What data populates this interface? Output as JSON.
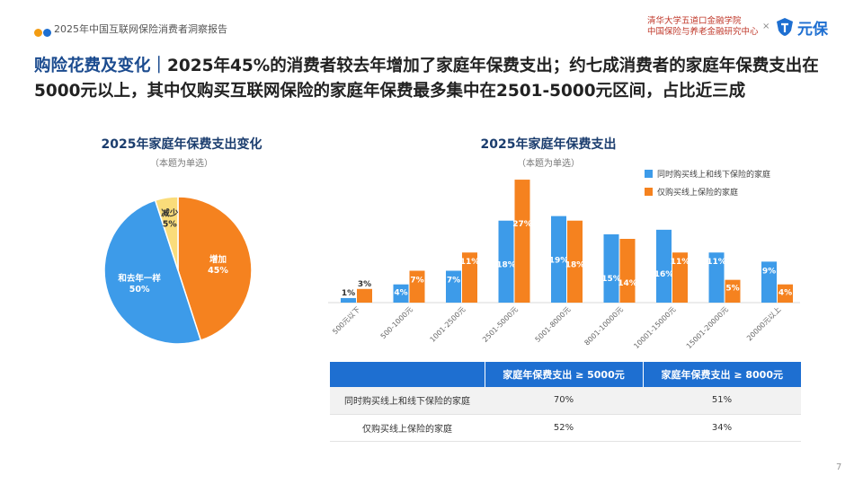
{
  "header": {
    "report_title": "2025年中国互联网保险消费者洞察报告",
    "institution_line1": "清华大学五道口金融学院",
    "institution_line2": "中国保险与养老金融研究中心",
    "separator": "×",
    "brand_name": "元保",
    "dot_colors": [
      "#f39c12",
      "#1e6fd1"
    ]
  },
  "headline": {
    "keyword": "购险花费及变化｜",
    "text": "2025年45%的消费者较去年增加了家庭年保费支出；约七成消费者的家庭年保费支出在5000元以上，其中仅购买互联网保险的家庭年保费最多集中在2501-5000元区间，占比近三成"
  },
  "pie_chart": {
    "title": "2025年家庭年保费支出变化",
    "subtitle": "（本题为单选）"
  },
  "bar_chart": {
    "title": "2025年家庭年保费支出",
    "subtitle": "（本题为单选）"
  },
  "chart_data": [
    {
      "type": "pie",
      "title": "2025年家庭年保费支出变化",
      "subtitle": "（本题为单选）",
      "slices": [
        {
          "label": "增加",
          "value": 45,
          "display": "45%",
          "color": "#f5821f"
        },
        {
          "label": "和去年一样",
          "value": 50,
          "display": "50%",
          "color": "#3d9be9"
        },
        {
          "label": "减少",
          "value": 5,
          "display": "5%",
          "color": "#fadc7a"
        }
      ]
    },
    {
      "type": "bar",
      "title": "2025年家庭年保费支出",
      "subtitle": "（本题为单选）",
      "categories": [
        "500元以下",
        "500-1000元",
        "1001-2500元",
        "2501-5000元",
        "5001-8000元",
        "8001-10000元",
        "10001-15000元",
        "15001-20000元",
        "20000元以上"
      ],
      "series": [
        {
          "name": "同时购买线上和线下保险的家庭",
          "color": "#3d9be9",
          "values": [
            1,
            4,
            7,
            18,
            19,
            15,
            16,
            11,
            9
          ],
          "labels": [
            "1%",
            "4%",
            "7%",
            "18%",
            "19%",
            "15%",
            "16%",
            "11%",
            "9%"
          ]
        },
        {
          "name": "仅购买线上保险的家庭",
          "color": "#f5821f",
          "values": [
            3,
            7,
            11,
            27,
            18,
            14,
            11,
            5,
            4
          ],
          "labels": [
            "3%",
            "7%",
            "11%",
            "27%",
            "18%",
            "14%",
            "11%",
            "5%",
            "4%"
          ]
        }
      ],
      "ylim": [
        0,
        28
      ],
      "legend": "top-right",
      "grid": false
    }
  ],
  "summary_table": {
    "headers": [
      "",
      "家庭年保费支出 ≥ 5000元",
      "家庭年保费支出 ≥ 8000元"
    ],
    "rows": [
      {
        "label": "同时购买线上和线下保险的家庭",
        "v1": "70%",
        "v2": "51%"
      },
      {
        "label": "仅购买线上保险的家庭",
        "v1": "52%",
        "v2": "34%"
      }
    ]
  },
  "page_number": "7"
}
